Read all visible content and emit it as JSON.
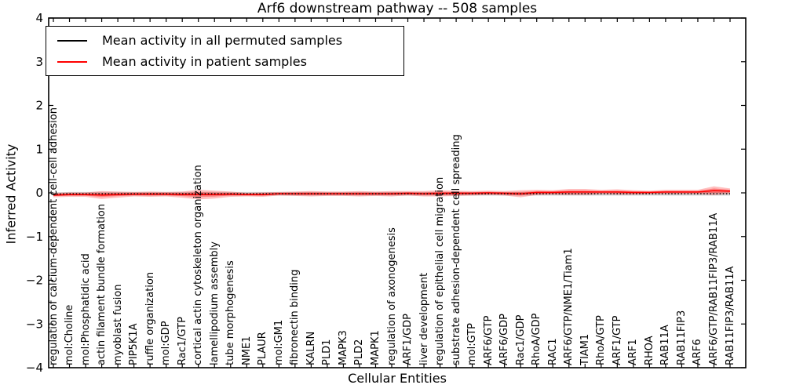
{
  "figure": {
    "title": "Arf6 downstream pathway -- 508 samples",
    "xlabel": "Cellular Entities",
    "ylabel": "Inferred Activity"
  },
  "chart_data": {
    "type": "line",
    "title": "Arf6 downstream pathway -- 508 samples",
    "xlabel": "Cellular Entities",
    "ylabel": "Inferred Activity",
    "ylim": [
      -4,
      4
    ],
    "yticks": [
      -4,
      -3,
      -2,
      -1,
      0,
      1,
      2,
      3,
      4
    ],
    "grid": false,
    "legend_position": "upper left",
    "categories": [
      "regulation of calcium-dependent cell-cell adhesion",
      "mol:Choline",
      "mol:Phosphatidic acid",
      "actin filament bundle formation",
      "myoblast fusion",
      "PIP5K1A",
      "ruffle organization",
      "mol:GDP",
      "Rac1/GTP",
      "cortical actin cytoskeleton organization",
      "lamellipodium assembly",
      "tube morphogenesis",
      "NME1",
      "PLAUR",
      "mol:GM1",
      "fibronectin binding",
      "KALRN",
      "PLD1",
      "MAPK3",
      "PLD2",
      "MAPK1",
      "regulation of axonogenesis",
      "ARF1/GDP",
      "liver development",
      "regulation of epithelial cell migration",
      "substrate adhesion-dependent cell spreading",
      "mol:GTP",
      "ARF6/GTP",
      "ARF6/GDP",
      "Rac1/GDP",
      "RhoA/GDP",
      "RAC1",
      "ARF6/GTP/NME1/Tiam1",
      "TIAM1",
      "RhoA/GTP",
      "ARF1/GTP",
      "ARF1",
      "RHOA",
      "RAB11A",
      "RAB11FIP3",
      "ARF6",
      "ARF6/GTP/RAB11FIP3/RAB11A",
      "RAB11FIP3/RAB11A"
    ],
    "series": [
      {
        "name": "Mean activity in all permuted samples",
        "color": "#000000",
        "line_style": "dotted",
        "values": [
          -0.03,
          -0.02,
          -0.02,
          -0.02,
          -0.02,
          -0.02,
          -0.02,
          -0.02,
          -0.02,
          -0.02,
          -0.02,
          -0.02,
          -0.02,
          -0.02,
          -0.02,
          -0.02,
          -0.02,
          -0.02,
          -0.02,
          -0.02,
          -0.02,
          -0.02,
          -0.02,
          -0.02,
          -0.02,
          -0.02,
          -0.02,
          -0.02,
          -0.02,
          -0.02,
          -0.02,
          -0.02,
          -0.02,
          -0.02,
          -0.02,
          -0.02,
          -0.02,
          -0.02,
          -0.02,
          -0.02,
          -0.02,
          -0.02,
          -0.02
        ],
        "band_halfwidth": [
          0.04,
          0.04,
          0.04,
          0.04,
          0.04,
          0.04,
          0.04,
          0.04,
          0.04,
          0.04,
          0.04,
          0.04,
          0.04,
          0.04,
          0.04,
          0.04,
          0.04,
          0.04,
          0.04,
          0.04,
          0.04,
          0.04,
          0.04,
          0.04,
          0.04,
          0.04,
          0.04,
          0.04,
          0.04,
          0.04,
          0.04,
          0.04,
          0.04,
          0.04,
          0.04,
          0.04,
          0.04,
          0.04,
          0.04,
          0.04,
          0.04,
          0.04,
          0.04
        ]
      },
      {
        "name": "Mean activity in patient samples",
        "color": "#ff0000",
        "line_style": "solid",
        "values": [
          -0.05,
          -0.04,
          -0.04,
          -0.05,
          -0.04,
          -0.03,
          -0.03,
          -0.03,
          -0.04,
          -0.04,
          -0.04,
          -0.03,
          -0.04,
          -0.04,
          -0.02,
          -0.02,
          -0.02,
          -0.02,
          -0.02,
          -0.02,
          -0.02,
          -0.02,
          -0.01,
          -0.02,
          -0.01,
          -0.01,
          -0.01,
          0.0,
          -0.01,
          -0.02,
          0.01,
          0.01,
          0.02,
          0.02,
          0.02,
          0.02,
          0.01,
          0.01,
          0.02,
          0.02,
          0.02,
          0.05,
          0.04
        ],
        "band_halfwidth": [
          0.05,
          0.05,
          0.05,
          0.09,
          0.07,
          0.05,
          0.06,
          0.05,
          0.07,
          0.11,
          0.09,
          0.06,
          0.04,
          0.05,
          0.04,
          0.05,
          0.06,
          0.05,
          0.05,
          0.06,
          0.05,
          0.06,
          0.05,
          0.06,
          0.07,
          0.06,
          0.05,
          0.05,
          0.05,
          0.08,
          0.06,
          0.05,
          0.07,
          0.07,
          0.05,
          0.06,
          0.05,
          0.04,
          0.05,
          0.05,
          0.05,
          0.1,
          0.06
        ]
      }
    ]
  }
}
